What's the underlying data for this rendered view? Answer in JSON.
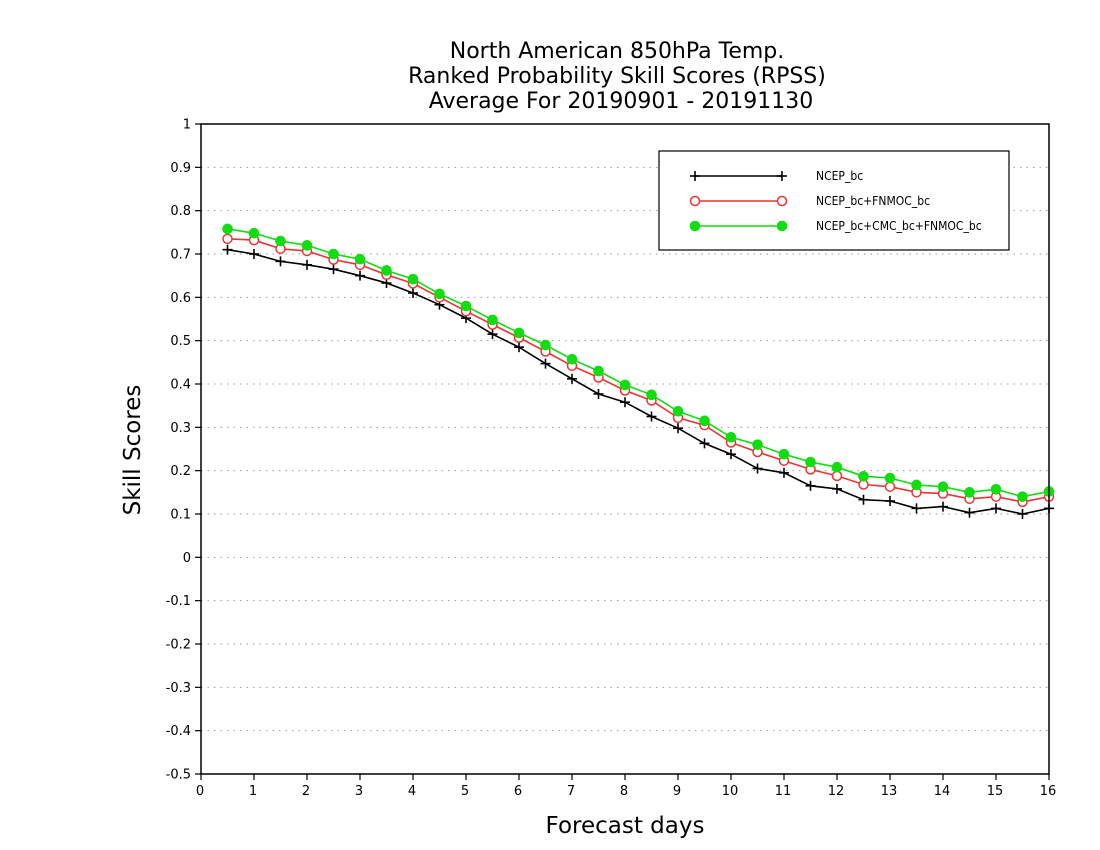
{
  "chart_data": {
    "type": "line",
    "title_lines": [
      "North American 850hPa Temp.",
      "Ranked Probability Skill Scores (RPSS)",
      "Average For 20190901 - 20191130"
    ],
    "xlabel": "Forecast days",
    "ylabel": "Skill Scores",
    "xlim": [
      0,
      16
    ],
    "ylim": [
      -0.5,
      1
    ],
    "x_ticks": [
      0,
      1,
      2,
      3,
      4,
      5,
      6,
      7,
      8,
      9,
      10,
      11,
      12,
      13,
      14,
      15,
      16
    ],
    "x_tick_labels": [
      "0",
      "1",
      "2",
      "3",
      "4",
      "5",
      "6",
      "7",
      "8",
      "9",
      "10",
      "11",
      "12",
      "13",
      "14",
      "15",
      "16"
    ],
    "y_ticks": [
      -0.5,
      -0.4,
      -0.3,
      -0.2,
      -0.1,
      0,
      0.1,
      0.2,
      0.3,
      0.4,
      0.5,
      0.6,
      0.7,
      0.8,
      0.9,
      1
    ],
    "y_tick_labels": [
      "-0.5",
      "-0.4",
      "-0.3",
      "-0.2",
      "-0.1",
      "0",
      "0.1",
      "0.2",
      "0.3",
      "0.4",
      "0.5",
      "0.6",
      "0.7",
      "0.8",
      "0.9",
      "1"
    ],
    "grid": "horizontal dotted",
    "legend_position": "top-right",
    "x": [
      0.5,
      1,
      1.5,
      2,
      2.5,
      3,
      3.5,
      4,
      4.5,
      5,
      5.5,
      6,
      6.5,
      7,
      7.5,
      8,
      8.5,
      9,
      9.5,
      10,
      10.5,
      11,
      11.5,
      12,
      12.5,
      13,
      13.5,
      14,
      14.5,
      15,
      15.5,
      16
    ],
    "series": [
      {
        "name": "NCEP_bc",
        "color": "#000000",
        "marker": "plus",
        "values": [
          0.71,
          0.7,
          0.683,
          0.675,
          0.665,
          0.65,
          0.633,
          0.61,
          0.583,
          0.552,
          0.515,
          0.485,
          0.447,
          0.412,
          0.377,
          0.358,
          0.325,
          0.298,
          0.263,
          0.238,
          0.205,
          0.195,
          0.165,
          0.158,
          0.133,
          0.13,
          0.113,
          0.117,
          0.103,
          0.113,
          0.1,
          0.113
        ]
      },
      {
        "name": "NCEP_bc+FNMOC_bc",
        "color": "#ee3333",
        "marker": "open-circle",
        "values": [
          0.735,
          0.732,
          0.712,
          0.707,
          0.687,
          0.675,
          0.652,
          0.632,
          0.6,
          0.568,
          0.537,
          0.507,
          0.475,
          0.442,
          0.415,
          0.385,
          0.362,
          0.322,
          0.305,
          0.265,
          0.243,
          0.223,
          0.203,
          0.188,
          0.168,
          0.163,
          0.15,
          0.147,
          0.135,
          0.14,
          0.128,
          0.14
        ]
      },
      {
        "name": "NCEP_bc+CMC_bc+FNMOC_bc",
        "color": "#11dd11",
        "marker": "filled-circle",
        "values": [
          0.758,
          0.748,
          0.73,
          0.72,
          0.7,
          0.688,
          0.662,
          0.642,
          0.608,
          0.58,
          0.548,
          0.518,
          0.49,
          0.457,
          0.43,
          0.398,
          0.375,
          0.337,
          0.315,
          0.277,
          0.26,
          0.238,
          0.22,
          0.208,
          0.187,
          0.183,
          0.167,
          0.163,
          0.15,
          0.157,
          0.14,
          0.152
        ]
      }
    ]
  }
}
